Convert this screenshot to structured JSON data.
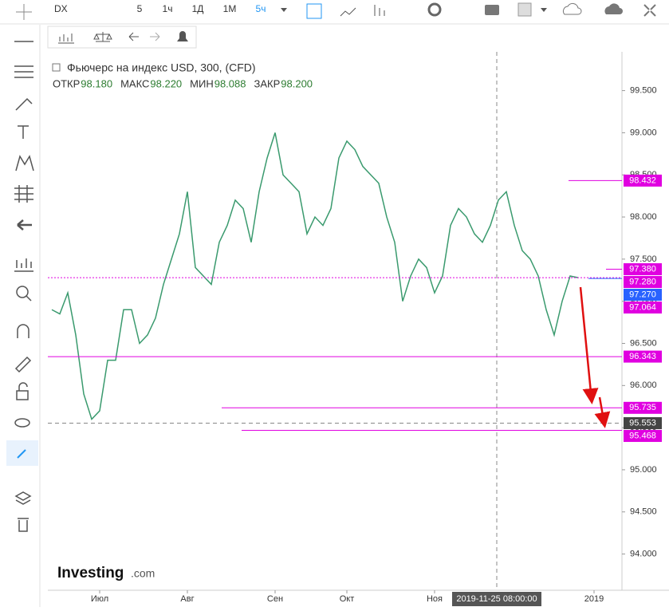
{
  "toolbar": {
    "symbol": "DX",
    "intervals": [
      "5",
      "1ч",
      "1Д",
      "1М",
      "5ч"
    ]
  },
  "chart_data": {
    "type": "line",
    "title": "Фьючерс на индекс USD, 300, (CFD)",
    "stats": [
      {
        "name": "ОТКР",
        "value": "98.180"
      },
      {
        "name": "МАКС",
        "value": "98.220"
      },
      {
        "name": "МИН",
        "value": "98.088"
      },
      {
        "name": "ЗАКР",
        "value": "98.200"
      }
    ],
    "categories": [
      null,
      null,
      null,
      null,
      null,
      null,
      "Июл",
      null,
      null,
      null,
      null,
      null,
      null,
      null,
      null,
      null,
      null,
      "Авг",
      null,
      null,
      null,
      null,
      null,
      null,
      null,
      null,
      null,
      null,
      "Сен",
      null,
      null,
      null,
      null,
      null,
      null,
      null,
      null,
      "Окт",
      null,
      null,
      null,
      null,
      null,
      null,
      null,
      null,
      null,
      null,
      "Ноя",
      null,
      null,
      null,
      null,
      null,
      null,
      null,
      null,
      null,
      null,
      null,
      null,
      null,
      null,
      null,
      null,
      null,
      null,
      null,
      "2019",
      null,
      null,
      null
    ],
    "values": [
      96.9,
      96.85,
      97.1,
      96.6,
      95.9,
      95.6,
      95.7,
      96.3,
      96.3,
      96.9,
      96.9,
      96.5,
      96.6,
      96.8,
      97.2,
      97.5,
      97.8,
      98.3,
      97.4,
      97.3,
      97.2,
      97.7,
      97.9,
      98.2,
      98.1,
      97.7,
      98.3,
      98.7,
      99.0,
      98.5,
      98.4,
      98.3,
      97.8,
      98.0,
      97.9,
      98.1,
      98.7,
      98.9,
      98.8,
      98.6,
      98.5,
      98.4,
      98.0,
      97.7,
      97.0,
      97.3,
      97.5,
      97.4,
      97.1,
      97.3,
      97.9,
      98.1,
      98.0,
      97.8,
      97.7,
      97.9,
      98.2,
      98.3,
      97.9,
      97.6,
      97.5,
      97.3,
      96.9,
      96.6,
      97.0,
      97.3,
      97.28,
      null,
      null,
      null,
      null,
      null
    ],
    "color": "#3a9a6e",
    "ylim": [
      93.57,
      99.96
    ],
    "yticks": [
      {
        "value": 94.0,
        "label": "94.000"
      },
      {
        "value": 94.5,
        "label": "94.500"
      },
      {
        "value": 95.0,
        "label": "95.000"
      },
      {
        "value": 95.5,
        "label": "95.500"
      },
      {
        "value": 96.0,
        "label": "96.000"
      },
      {
        "value": 96.5,
        "label": "96.500"
      },
      {
        "value": 97.0,
        "label": "97.000"
      },
      {
        "value": 97.5,
        "label": "97.500"
      },
      {
        "value": 98.0,
        "label": "98.000"
      },
      {
        "value": 98.5,
        "label": "98.500"
      },
      {
        "value": 99.0,
        "label": "99.000"
      },
      {
        "value": 99.5,
        "label": "99.500"
      }
    ],
    "levels": [
      {
        "value": 98.432,
        "label": "98.432",
        "color": "#e000e0"
      },
      {
        "value": 97.38,
        "label": "97.380",
        "color": "#e000e0"
      },
      {
        "value": 97.28,
        "label": "97.280",
        "color": "#e000e0"
      },
      {
        "value": 97.27,
        "label": "97.270",
        "color": "#2962ff"
      },
      {
        "value": 97.064,
        "label": "97.064",
        "color": "#e000e0"
      },
      {
        "value": 96.343,
        "label": "96.343",
        "color": "#e000e0"
      },
      {
        "value": 95.735,
        "label": "95.735",
        "color": "#e000e0"
      },
      {
        "value": 95.553,
        "label": "95.553",
        "color": "#444444"
      },
      {
        "value": 95.468,
        "label": "95.468",
        "color": "#e000e0"
      }
    ],
    "crosshair_label": "2019-11-25 08:00:00",
    "logo": {
      "text": "Investing",
      "suffix": ".com"
    }
  }
}
